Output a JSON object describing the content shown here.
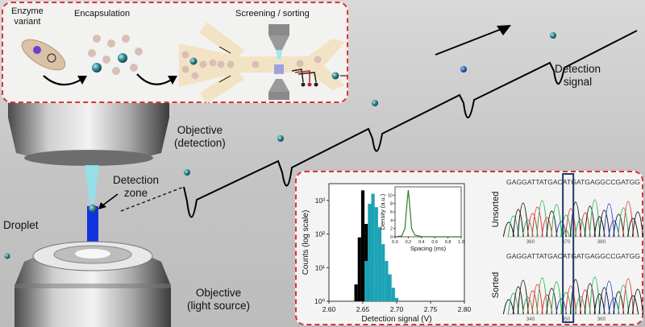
{
  "top_panel": {
    "steps": [
      {
        "label_line1": "Enzyme",
        "label_line2": "variant"
      },
      {
        "label_line1": "Encapsulation"
      },
      {
        "label_line1": "Screening / sorting"
      }
    ]
  },
  "labels": {
    "detection_signal_line1": "Detection",
    "detection_signal_line2": "signal",
    "objective_detection_line1": "Objective",
    "objective_detection_line2": "(detection)",
    "detection_zone_line1": "Detection",
    "detection_zone_line2": "zone",
    "droplet": "Droplet",
    "objective_light_line1": "Objective",
    "objective_light_line2": "(light source)"
  },
  "histogram": {
    "xlabel": "Detection signal (V)",
    "ylabel": "Counts (log scale)",
    "xticks": [
      "2.60",
      "2.65",
      "2.70",
      "2.75",
      "2.80"
    ],
    "yticks": [
      "10⁰",
      "10¹",
      "10²",
      "10³"
    ],
    "inset": {
      "xlabel": "Spacing (ms)",
      "ylabel": "Density (a.u.)",
      "xticks": [
        "0.0",
        "0.2",
        "0.4",
        "0.6",
        "0.8",
        "1.0"
      ],
      "yticks": [
        "0",
        "2",
        "4",
        "6",
        "8",
        "10"
      ]
    }
  },
  "chart_data": {
    "type": "bar",
    "xlabel": "Detection signal (V)",
    "ylabel": "Counts (log scale)",
    "xlim": [
      2.6,
      2.8
    ],
    "ylim_log10": [
      0,
      3.5
    ],
    "series": [
      {
        "color": "#000000",
        "x": [
          2.64,
          2.645,
          2.65,
          2.655,
          2.66
        ],
        "log10_counts": [
          0.5,
          1.9,
          3.3,
          2.3,
          0.5
        ]
      },
      {
        "color": "#1ba3b5",
        "x": [
          2.655,
          2.66,
          2.665,
          2.67,
          2.675,
          2.68,
          2.685,
          2.69,
          2.695,
          2.7
        ],
        "log10_counts": [
          1.2,
          2.9,
          3.2,
          2.8,
          2.2,
          1.7,
          1.2,
          0.8,
          0.4,
          0.1
        ]
      }
    ],
    "inset": {
      "type": "line",
      "xlabel": "Spacing (ms)",
      "ylabel": "Density (a.u.)",
      "xlim": [
        0.0,
        1.0
      ],
      "ylim": [
        0,
        12
      ],
      "x": [
        0.0,
        0.1,
        0.15,
        0.18,
        0.2,
        0.22,
        0.25,
        0.3,
        0.4,
        0.6,
        0.8,
        1.0
      ],
      "y": [
        0,
        0.2,
        2.0,
        8.0,
        11.2,
        8.0,
        2.0,
        0.4,
        0.05,
        0,
        0,
        0
      ]
    }
  },
  "sequencing": {
    "unsorted_label": "Unsorted",
    "sorted_label": "Sorted",
    "unsorted_sequence": "GAGGATTATGACATGATGAGGCCGATGG",
    "sorted_sequence": "GAGGATTATGACATGATGAGGCCGATGG",
    "unsorted_ticks": [
      "360",
      "370",
      "380"
    ],
    "sorted_ticks": [
      "340",
      "350",
      "360"
    ]
  },
  "colors": {
    "panel_border": "#dd3333",
    "laser": "#1133dd",
    "signal_trace": "#000000",
    "sorted_hist": "#1ba3b5",
    "highlight_box": "#1e3a66"
  }
}
